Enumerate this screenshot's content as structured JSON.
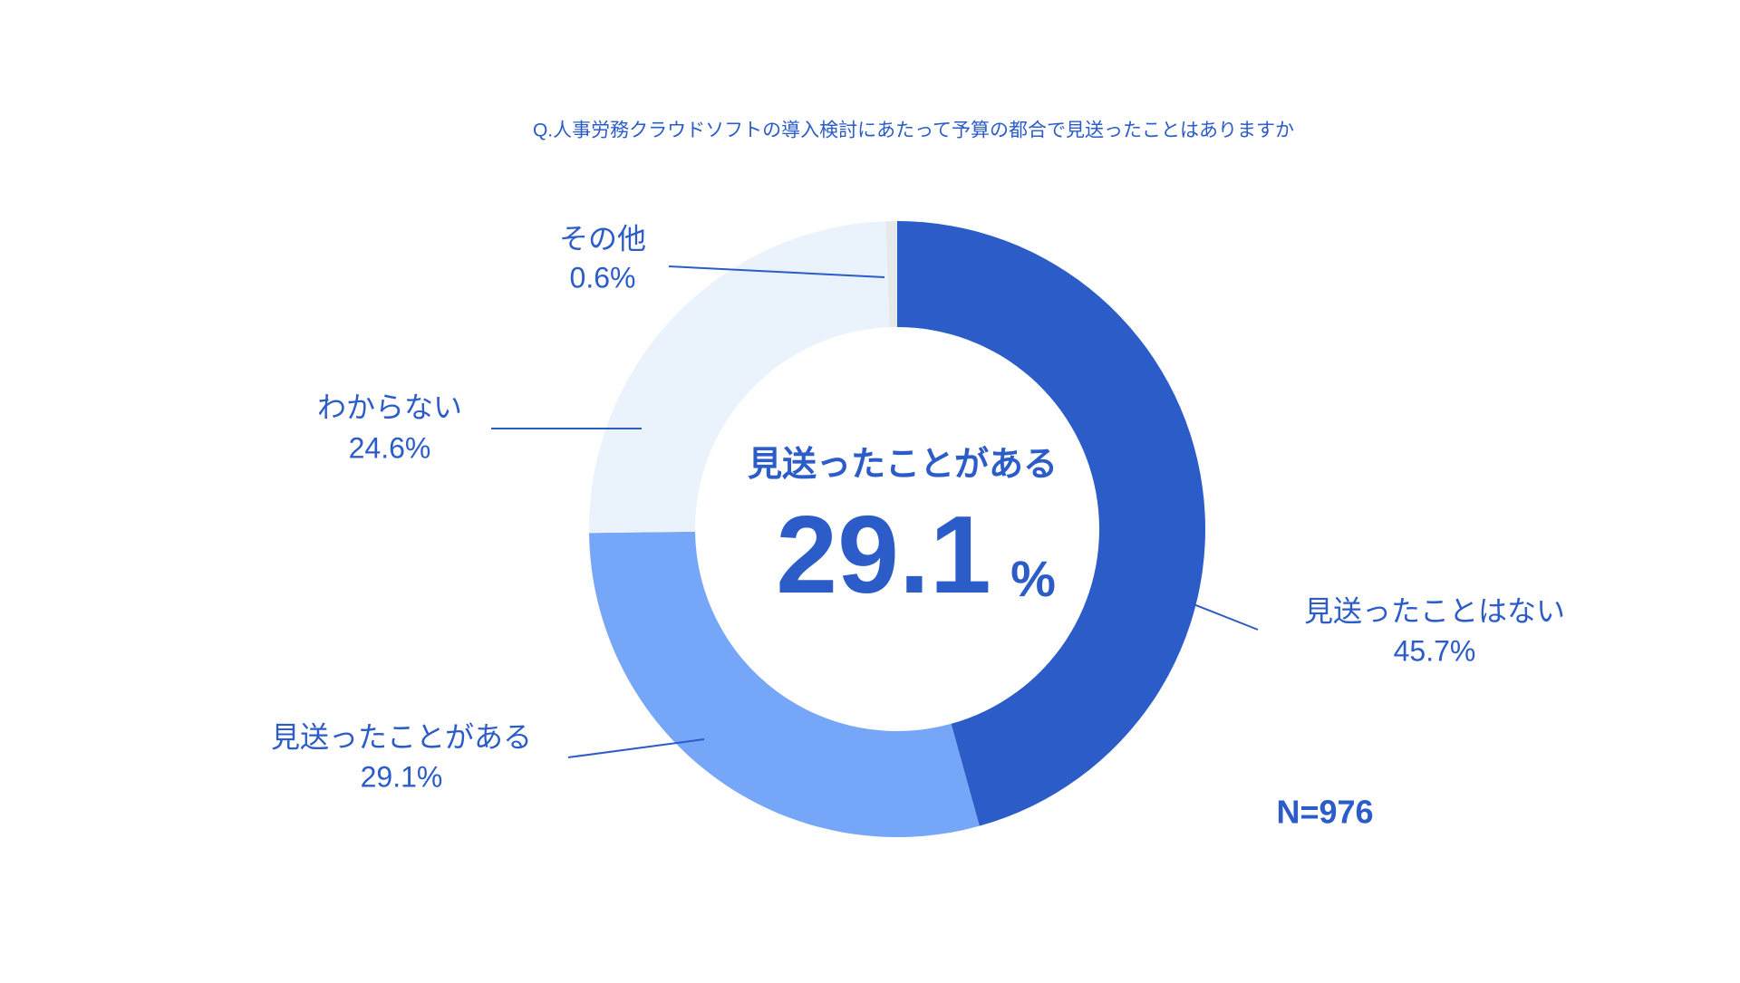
{
  "chart_data": {
    "type": "pie",
    "title": "Q.人事労務クラウドソフトの導入検討にあたって予算の都合で見送ったことはありますか",
    "categories": [
      "見送ったことはない",
      "見送ったことがある",
      "わからない",
      "その他"
    ],
    "values": [
      45.7,
      29.1,
      24.6,
      0.6
    ],
    "value_labels": [
      "45.7%",
      "29.1%",
      "24.6%",
      "0.6%"
    ],
    "colors": [
      "#2b5cc8",
      "#76a6f8",
      "#eaf2fc",
      "#e6e9ea"
    ],
    "center_label": "見送ったことがある",
    "center_value": 29.1,
    "center_unit": "%",
    "note": "N=976"
  }
}
